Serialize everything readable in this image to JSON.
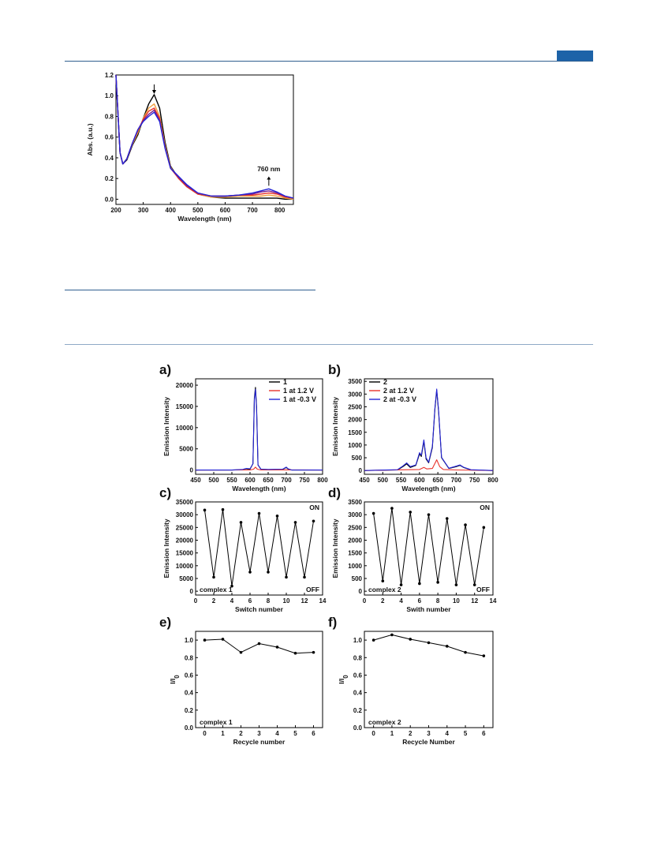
{
  "colors": {
    "rule": "#2f5f8f",
    "tab": "#1d63a8",
    "red": "#e8322a",
    "blue": "#2424d6",
    "orange": "#f0a040",
    "purple": "#7a1c8c",
    "black": "#000000"
  },
  "chart_data": [
    {
      "id": "absorbance",
      "type": "line",
      "xlabel": "Wavelength (nm)",
      "ylabel": "Abs. (a.u.)",
      "xlim": [
        200,
        850
      ],
      "ylim": [
        -0.05,
        1.2
      ],
      "xticks": [
        200,
        300,
        400,
        500,
        600,
        700,
        800
      ],
      "yticks": [
        "0.0",
        "0.2",
        "0.4",
        "0.6",
        "0.8",
        "1.0",
        "1.2"
      ],
      "annotation": "760 nm",
      "series": [
        {
          "color": "#000000",
          "x": [
            200,
            215,
            225,
            240,
            260,
            280,
            300,
            320,
            340,
            360,
            380,
            400,
            430,
            460,
            500,
            550,
            600,
            650,
            700,
            730,
            760,
            790,
            820,
            850
          ],
          "y": [
            1.2,
            0.45,
            0.34,
            0.38,
            0.52,
            0.62,
            0.78,
            0.92,
            1.01,
            0.88,
            0.55,
            0.32,
            0.2,
            0.12,
            0.05,
            0.02,
            0.01,
            0.01,
            0.01,
            0.01,
            0.01,
            0.01,
            0.0,
            0.0
          ]
        },
        {
          "color": "#f0a040",
          "x": [
            200,
            215,
            225,
            240,
            260,
            280,
            300,
            320,
            340,
            360,
            380,
            400,
            430,
            460,
            500,
            550,
            600,
            650,
            700,
            730,
            760,
            790,
            820,
            850
          ],
          "y": [
            1.2,
            0.45,
            0.34,
            0.39,
            0.53,
            0.64,
            0.78,
            0.88,
            0.92,
            0.8,
            0.52,
            0.31,
            0.2,
            0.12,
            0.05,
            0.02,
            0.02,
            0.03,
            0.03,
            0.03,
            0.04,
            0.03,
            0.01,
            0.0
          ]
        },
        {
          "color": "#e8322a",
          "x": [
            200,
            215,
            225,
            240,
            260,
            280,
            300,
            320,
            340,
            360,
            380,
            400,
            430,
            460,
            500,
            550,
            600,
            650,
            700,
            730,
            760,
            790,
            820,
            850
          ],
          "y": [
            1.2,
            0.45,
            0.34,
            0.39,
            0.54,
            0.66,
            0.77,
            0.85,
            0.88,
            0.78,
            0.5,
            0.3,
            0.2,
            0.12,
            0.05,
            0.03,
            0.03,
            0.04,
            0.04,
            0.05,
            0.06,
            0.05,
            0.02,
            0.01
          ]
        },
        {
          "color": "#7a1c8c",
          "x": [
            200,
            215,
            225,
            240,
            260,
            280,
            300,
            320,
            340,
            360,
            380,
            400,
            430,
            460,
            500,
            550,
            600,
            650,
            700,
            730,
            760,
            790,
            820,
            850
          ],
          "y": [
            1.2,
            0.45,
            0.34,
            0.39,
            0.54,
            0.67,
            0.76,
            0.82,
            0.86,
            0.76,
            0.5,
            0.3,
            0.21,
            0.13,
            0.06,
            0.03,
            0.03,
            0.04,
            0.05,
            0.07,
            0.08,
            0.06,
            0.03,
            0.01
          ]
        },
        {
          "color": "#2424d6",
          "x": [
            200,
            215,
            225,
            240,
            260,
            280,
            300,
            320,
            340,
            360,
            380,
            400,
            430,
            460,
            500,
            550,
            600,
            650,
            700,
            730,
            760,
            790,
            820,
            850
          ],
          "y": [
            1.2,
            0.45,
            0.34,
            0.39,
            0.54,
            0.67,
            0.75,
            0.8,
            0.84,
            0.75,
            0.49,
            0.3,
            0.22,
            0.14,
            0.06,
            0.03,
            0.03,
            0.04,
            0.06,
            0.08,
            0.1,
            0.07,
            0.03,
            0.01
          ]
        }
      ]
    },
    {
      "id": "a",
      "panel": "a)",
      "type": "line",
      "xlabel": "Wavelength (nm)",
      "ylabel": "Emission Intensity",
      "xlim": [
        450,
        800
      ],
      "ylim": [
        -1000,
        21500
      ],
      "xticks": [
        450,
        500,
        550,
        600,
        650,
        700,
        750,
        800
      ],
      "yticks": [
        0,
        5000,
        10000,
        15000,
        20000
      ],
      "legend": "top-right",
      "series": [
        {
          "name": "1",
          "color": "#000000",
          "x": [
            450,
            550,
            590,
            600,
            608,
            612,
            615,
            618,
            622,
            630,
            650,
            690,
            700,
            705,
            715,
            800
          ],
          "y": [
            0,
            0,
            100,
            200,
            1500,
            17000,
            19500,
            15000,
            1200,
            200,
            100,
            150,
            600,
            250,
            0,
            0
          ]
        },
        {
          "name": "1 at 1.2 V",
          "color": "#e8322a",
          "x": [
            450,
            600,
            610,
            615,
            620,
            630,
            700,
            800
          ],
          "y": [
            0,
            30,
            200,
            700,
            200,
            30,
            50,
            0
          ]
        },
        {
          "name": "1 at -0.3 V",
          "color": "#2424d6",
          "x": [
            450,
            550,
            580,
            590,
            600,
            608,
            612,
            615,
            618,
            622,
            630,
            650,
            690,
            700,
            705,
            715,
            800
          ],
          "y": [
            0,
            0,
            150,
            400,
            300,
            1500,
            16500,
            19000,
            14500,
            1200,
            200,
            150,
            200,
            700,
            300,
            0,
            0
          ]
        }
      ]
    },
    {
      "id": "b",
      "panel": "b)",
      "type": "line",
      "xlabel": "Wavelength (nm)",
      "ylabel": "Emission Intensity",
      "xlim": [
        450,
        800
      ],
      "ylim": [
        -150,
        3600
      ],
      "xticks": [
        450,
        500,
        550,
        600,
        650,
        700,
        750,
        800
      ],
      "yticks": [
        0,
        500,
        1000,
        1500,
        2000,
        2500,
        3000,
        3500
      ],
      "legend": "top-left",
      "series": [
        {
          "name": "2",
          "color": "#000000",
          "x": [
            450,
            540,
            555,
            565,
            575,
            590,
            600,
            605,
            612,
            618,
            625,
            635,
            642,
            647,
            652,
            660,
            680,
            700,
            710,
            720,
            740,
            800
          ],
          "y": [
            0,
            20,
            150,
            260,
            120,
            200,
            650,
            550,
            1150,
            450,
            300,
            900,
            2400,
            3150,
            2300,
            500,
            80,
            150,
            200,
            120,
            20,
            0
          ]
        },
        {
          "name": "2 at 1.2 V",
          "color": "#e8322a",
          "x": [
            450,
            600,
            612,
            620,
            635,
            647,
            655,
            665,
            700,
            800
          ],
          "y": [
            0,
            40,
            120,
            60,
            80,
            420,
            150,
            40,
            20,
            0
          ]
        },
        {
          "name": "2 at -0.3 V",
          "color": "#2424d6",
          "x": [
            450,
            540,
            555,
            565,
            575,
            590,
            600,
            605,
            612,
            618,
            625,
            635,
            642,
            647,
            652,
            660,
            680,
            700,
            710,
            720,
            740,
            800
          ],
          "y": [
            0,
            30,
            180,
            300,
            150,
            220,
            700,
            600,
            1200,
            500,
            320,
            950,
            2450,
            3200,
            2350,
            520,
            90,
            170,
            220,
            130,
            30,
            0
          ]
        }
      ]
    },
    {
      "id": "c",
      "panel": "c)",
      "type": "line",
      "xlabel": "Switch number",
      "ylabel": "Emission Intensity",
      "xlim": [
        0,
        14
      ],
      "ylim": [
        -1500,
        35000
      ],
      "xticks": [
        0,
        2,
        4,
        6,
        8,
        10,
        12,
        14
      ],
      "yticks": [
        0,
        5000,
        10000,
        15000,
        20000,
        25000,
        30000,
        35000
      ],
      "on_label": "ON",
      "off_label": "OFF",
      "series_label": "complex 1",
      "x": [
        1,
        2,
        3,
        4,
        5,
        6,
        7,
        8,
        9,
        10,
        11,
        12,
        13
      ],
      "y": [
        31800,
        5500,
        32000,
        2000,
        27000,
        7500,
        30500,
        7500,
        29500,
        5500,
        27000,
        5500,
        27500
      ]
    },
    {
      "id": "d",
      "panel": "d)",
      "type": "line",
      "xlabel": "Swith number",
      "ylabel": "Emission Intensity",
      "xlim": [
        0,
        14
      ],
      "ylim": [
        -150,
        3500
      ],
      "xticks": [
        0,
        2,
        4,
        6,
        8,
        10,
        12,
        14
      ],
      "yticks": [
        0,
        500,
        1000,
        1500,
        2000,
        2500,
        3000,
        3500
      ],
      "on_label": "ON",
      "off_label": "OFF",
      "series_label": "complex 2",
      "x": [
        1,
        2,
        3,
        4,
        5,
        6,
        7,
        8,
        9,
        10,
        11,
        12,
        13
      ],
      "y": [
        3050,
        400,
        3250,
        250,
        3100,
        300,
        3000,
        350,
        2850,
        250,
        2600,
        250,
        2500
      ]
    },
    {
      "id": "e",
      "panel": "e)",
      "type": "line",
      "xlabel": "Recycle number",
      "ylabel": "I/I0",
      "xlim": [
        -0.5,
        6.5
      ],
      "ylim": [
        0,
        1.1
      ],
      "xticks": [
        0,
        1,
        2,
        3,
        4,
        5,
        6
      ],
      "yticks": [
        "0.0",
        "0.2",
        "0.4",
        "0.6",
        "0.8",
        "1.0"
      ],
      "series_label": "complex 1",
      "x": [
        0,
        1,
        2,
        3,
        4,
        5,
        6
      ],
      "y": [
        1.0,
        1.01,
        0.86,
        0.96,
        0.92,
        0.85,
        0.86
      ]
    },
    {
      "id": "f",
      "panel": "f)",
      "type": "line",
      "xlabel": "Recycle Number",
      "ylabel": "I/I0",
      "xlim": [
        -0.5,
        6.5
      ],
      "ylim": [
        0,
        1.1
      ],
      "xticks": [
        0,
        1,
        2,
        3,
        4,
        5,
        6
      ],
      "yticks": [
        "0.0",
        "0.2",
        "0.4",
        "0.6",
        "0.8",
        "1.0"
      ],
      "series_label": "complex 2",
      "x": [
        0,
        1,
        2,
        3,
        4,
        5,
        6
      ],
      "y": [
        1.0,
        1.06,
        1.01,
        0.97,
        0.93,
        0.86,
        0.82
      ]
    }
  ]
}
